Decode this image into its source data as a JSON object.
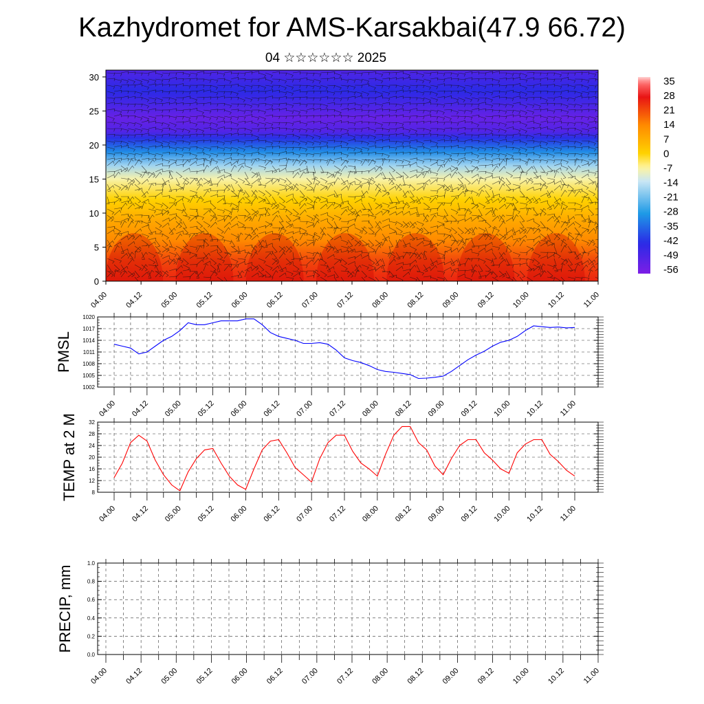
{
  "title": "Kazhydromet for AMS-Karsakbai(47.9 66.72)",
  "subtitle": "04 ☆☆☆☆☆☆ 2025",
  "chart_data": [
    {
      "type": "heatmap",
      "panel": "vertical-section",
      "x_ticks": [
        "04.00",
        "04.12",
        "05.00",
        "05.12",
        "06.00",
        "06.12",
        "07.00",
        "07.12",
        "08.00",
        "08.12",
        "09.00",
        "09.12",
        "10.00",
        "10.12",
        "11.00"
      ],
      "y_ticks": [
        0,
        5,
        10,
        15,
        20,
        25,
        30
      ],
      "ylim": [
        0,
        31
      ],
      "colorbar": {
        "labels": [
          "35",
          "28",
          "21",
          "14",
          "7",
          "0",
          "-7",
          "-14",
          "-21",
          "-28",
          "-35",
          "-42",
          "-49",
          "-56"
        ],
        "range": [
          -60,
          38
        ],
        "colors": {
          "-60": "#7d1ee6",
          "-45": "#2a2ae6",
          "-30": "#1e9ae6",
          "-14": "#c8e6f5",
          "-7": "#fff49e",
          "0": "#ffd200",
          "14": "#ff8a00",
          "28": "#e81414",
          "35": "#ff6e6e",
          "38": "#ffd2d2"
        }
      },
      "profile": {
        "heights": [
          0,
          3,
          6,
          9,
          12,
          15,
          17,
          19,
          21,
          22,
          24,
          26,
          28,
          31
        ],
        "values": [
          26,
          22,
          14,
          8,
          0,
          -8,
          -18,
          -32,
          -44,
          -52,
          -56,
          -50,
          -45,
          -52
        ]
      },
      "grid": false
    },
    {
      "type": "line",
      "panel": "pmsl",
      "ylabel": "PMSL",
      "x_ticks": [
        "04.00",
        "04.12",
        "05.00",
        "05.12",
        "06.00",
        "06.12",
        "07.00",
        "07.12",
        "08.00",
        "08.12",
        "09.00",
        "09.12",
        "10.00",
        "10.12",
        "11.00"
      ],
      "y_ticks": [
        1002,
        1005,
        1008,
        1011,
        1014,
        1017,
        1020
      ],
      "ylim": [
        1002,
        1020
      ],
      "series": [
        {
          "color": "#0000ff",
          "x": [
            0,
            1,
            2,
            3,
            4,
            5,
            6,
            7,
            8,
            9,
            10,
            11,
            12,
            13,
            14,
            15,
            16,
            17,
            18,
            19,
            20,
            21,
            22,
            23,
            24,
            25,
            26,
            27,
            28,
            29,
            30,
            31,
            32,
            33,
            34,
            35,
            36,
            37,
            38,
            39,
            40,
            41,
            42,
            43,
            44,
            45,
            46,
            47,
            48,
            49,
            50,
            51,
            52,
            53,
            54,
            55,
            56
          ],
          "values": [
            1013,
            1012.5,
            1012,
            1010.5,
            1011,
            1012.5,
            1014,
            1015,
            1016.5,
            1018.5,
            1018,
            1018,
            1018.5,
            1019,
            1019,
            1019,
            1019.5,
            1019.5,
            1018,
            1016,
            1015,
            1014.5,
            1014,
            1013.2,
            1013.2,
            1013.4,
            1013,
            1011.5,
            1009.5,
            1008.8,
            1008.3,
            1007.5,
            1006.5,
            1006,
            1005.8,
            1005.5,
            1005.2,
            1004.2,
            1004.3,
            1004.5,
            1004.8,
            1006,
            1007.5,
            1009,
            1010.2,
            1011.2,
            1012.5,
            1013.5,
            1014,
            1015,
            1016.5,
            1017.7,
            1017.5,
            1017.3,
            1017.4,
            1017.2,
            1017.3
          ]
        }
      ],
      "grid": true
    },
    {
      "type": "line",
      "panel": "temp2m",
      "ylabel": "TEMP at 2 M",
      "x_ticks": [
        "04.00",
        "04.12",
        "05.00",
        "05.12",
        "06.00",
        "06.12",
        "07.00",
        "07.12",
        "08.00",
        "08.12",
        "09.00",
        "09.12",
        "10.00",
        "10.12",
        "11.00"
      ],
      "y_ticks": [
        8,
        12,
        16,
        20,
        24,
        28,
        32
      ],
      "ylim": [
        8,
        32
      ],
      "series": [
        {
          "color": "#ff0000",
          "x": [
            0,
            1,
            2,
            3,
            4,
            5,
            6,
            7,
            8,
            9,
            10,
            11,
            12,
            13,
            14,
            15,
            16,
            17,
            18,
            19,
            20,
            21,
            22,
            23,
            24,
            25,
            26,
            27,
            28,
            29,
            30,
            31,
            32,
            33,
            34,
            35,
            36,
            37,
            38,
            39,
            40,
            41,
            42,
            43,
            44,
            45,
            46,
            47,
            48,
            49,
            50,
            51,
            52,
            53,
            54,
            55,
            56
          ],
          "values": [
            13,
            18,
            25,
            27.5,
            25.5,
            19,
            14,
            10.5,
            8.5,
            15,
            19.5,
            22.5,
            23,
            18,
            13.5,
            10.5,
            9,
            16,
            22.5,
            25.5,
            26,
            21.5,
            16.5,
            14,
            11.5,
            19.5,
            25,
            27.5,
            27.5,
            22,
            18,
            16,
            13.5,
            21,
            27.5,
            30.5,
            30.5,
            25,
            22.5,
            17,
            14,
            19.5,
            24,
            26,
            26,
            21.5,
            19,
            16,
            14.5,
            21.5,
            24.5,
            26,
            26,
            21,
            18.5,
            15.5,
            13.5
          ]
        }
      ],
      "grid": true
    },
    {
      "type": "line",
      "panel": "precip",
      "ylabel": "PRECIP, mm",
      "x_ticks": [
        "04.00",
        "04.12",
        "05.00",
        "05.12",
        "06.00",
        "06.12",
        "07.00",
        "07.12",
        "08.00",
        "08.12",
        "09.00",
        "09.12",
        "10.00",
        "10.12",
        "11.00"
      ],
      "y_ticks": [
        "0.0",
        "0.2",
        "0.4",
        "0.6",
        "0.8",
        "1.0"
      ],
      "ylim": [
        0,
        1
      ],
      "series": [
        {
          "color": "#1e7a1e",
          "x": [
            0,
            56
          ],
          "values": [
            0,
            0
          ]
        }
      ],
      "grid": true
    }
  ]
}
